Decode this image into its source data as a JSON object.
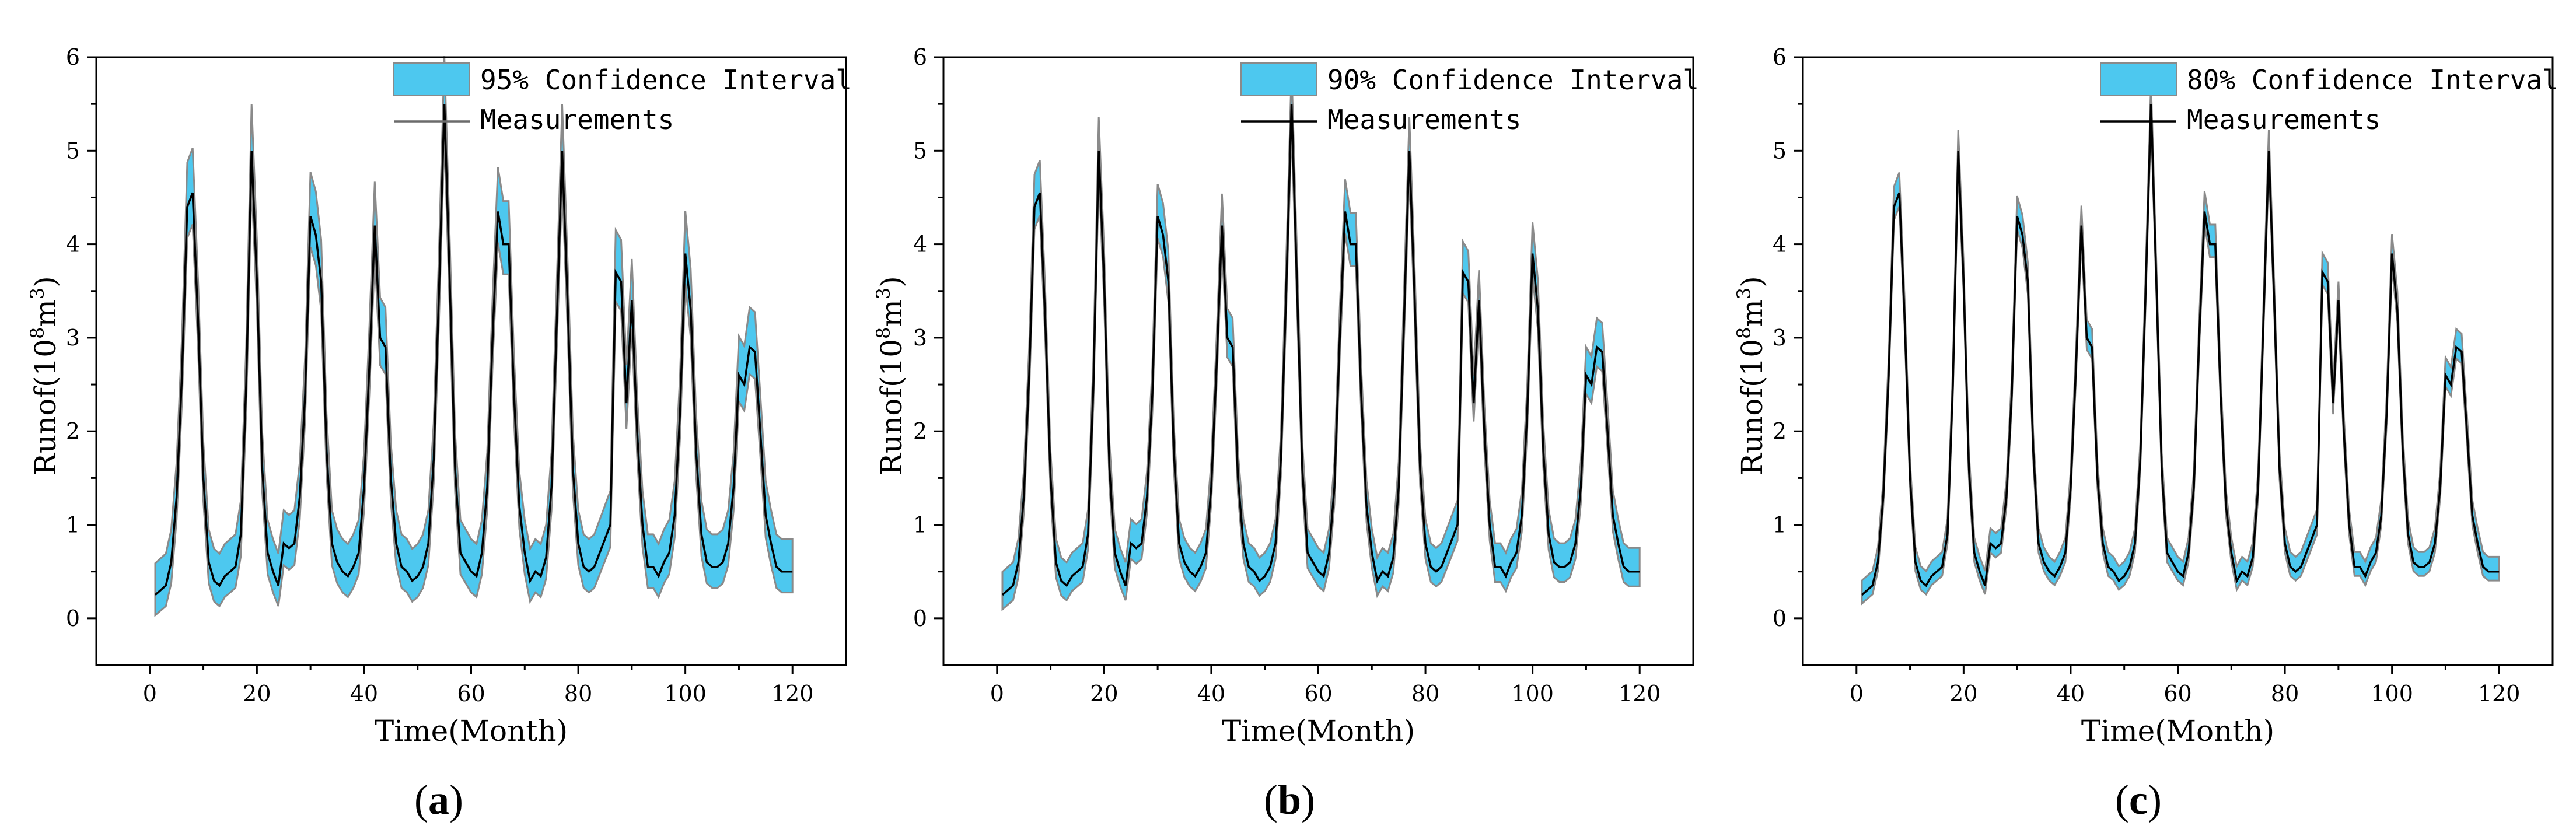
{
  "colors": {
    "band": "#4dc8ef",
    "band_edge": "#8a8a8a",
    "line": "#000000",
    "axis": "#000000"
  },
  "chart_data": [
    {
      "type": "area",
      "panel_label": "a",
      "xlabel": "Time(Month)",
      "ylabel_parts": {
        "main": "Runof(10",
        "sup1": "8",
        "mid": "m",
        "sup2": "3",
        "close": ")"
      },
      "xlim": [
        -10,
        130
      ],
      "ylim": [
        -0.5,
        6
      ],
      "xticks": [
        0,
        20,
        40,
        60,
        80,
        100,
        120
      ],
      "yticks": [
        0,
        1,
        2,
        3,
        4,
        5,
        6
      ],
      "legend": {
        "position": "top-right",
        "band_label": "95% Confidence Interval",
        "line_label": "Measurements"
      },
      "band_low_offset": 0.35,
      "band_high_offset": 0.55
    },
    {
      "type": "area",
      "panel_label": "b",
      "xlabel": "Time(Month)",
      "ylabel_parts": {
        "main": "Runof(10",
        "sup1": "8",
        "mid": "m",
        "sup2": "3",
        "close": ")"
      },
      "xlim": [
        -10,
        130
      ],
      "ylim": [
        -0.5,
        6
      ],
      "xticks": [
        0,
        20,
        40,
        60,
        80,
        100,
        120
      ],
      "yticks": [
        0,
        1,
        2,
        3,
        4,
        5,
        6
      ],
      "legend": {
        "position": "top-right",
        "band_label": "90% Confidence Interval",
        "line_label": "Measurements"
      },
      "band_low_offset": 0.25,
      "band_high_offset": 0.4
    },
    {
      "type": "area",
      "panel_label": "c",
      "xlabel": "Time(Month)",
      "ylabel_parts": {
        "main": "Runof(10",
        "sup1": "8",
        "mid": "m",
        "sup2": "3",
        "close": ")"
      },
      "xlim": [
        -10,
        130
      ],
      "ylim": [
        -0.5,
        6
      ],
      "xticks": [
        0,
        20,
        40,
        60,
        80,
        100,
        120
      ],
      "yticks": [
        0,
        1,
        2,
        3,
        4,
        5,
        6
      ],
      "legend": {
        "position": "top-right",
        "band_label": "80% Confidence Interval",
        "line_label": "Measurements"
      },
      "band_low_offset": 0.15,
      "band_high_offset": 0.25
    }
  ],
  "measurements": {
    "x": [
      1,
      2,
      3,
      4,
      5,
      6,
      7,
      8,
      9,
      10,
      11,
      12,
      13,
      14,
      15,
      16,
      17,
      18,
      19,
      20,
      21,
      22,
      23,
      24,
      25,
      26,
      27,
      28,
      29,
      30,
      31,
      32,
      33,
      34,
      35,
      36,
      37,
      38,
      39,
      40,
      41,
      42,
      43,
      44,
      45,
      46,
      47,
      48,
      49,
      50,
      51,
      52,
      53,
      54,
      55,
      56,
      57,
      58,
      59,
      60,
      61,
      62,
      63,
      64,
      65,
      66,
      67,
      68,
      69,
      70,
      71,
      72,
      73,
      74,
      75,
      76,
      77,
      78,
      79,
      80,
      81,
      82,
      83,
      84,
      85,
      86,
      87,
      88,
      89,
      90,
      91,
      92,
      93,
      94,
      95,
      96,
      97,
      98,
      99,
      100,
      101,
      102,
      103,
      104,
      105,
      106,
      107,
      108,
      109,
      110,
      111,
      112,
      113,
      114,
      115,
      116,
      117,
      118,
      119,
      120
    ],
    "y": [
      0.25,
      0.3,
      0.35,
      0.6,
      1.3,
      2.6,
      4.4,
      4.55,
      3.2,
      1.5,
      0.6,
      0.4,
      0.35,
      0.45,
      0.5,
      0.55,
      0.9,
      2.5,
      5.0,
      3.6,
      1.6,
      0.7,
      0.5,
      0.35,
      0.8,
      0.75,
      0.8,
      1.3,
      2.4,
      4.3,
      4.1,
      3.6,
      1.8,
      0.8,
      0.6,
      0.5,
      0.45,
      0.55,
      0.7,
      1.4,
      2.7,
      4.2,
      3.0,
      2.9,
      1.5,
      0.8,
      0.55,
      0.5,
      0.4,
      0.45,
      0.55,
      0.8,
      1.7,
      3.5,
      5.5,
      3.6,
      1.6,
      0.7,
      0.6,
      0.5,
      0.45,
      0.7,
      1.4,
      3.0,
      4.35,
      4.0,
      4.0,
      2.4,
      1.2,
      0.7,
      0.4,
      0.5,
      0.45,
      0.65,
      1.4,
      3.2,
      5.0,
      3.4,
      1.6,
      0.8,
      0.55,
      0.5,
      0.55,
      0.7,
      0.85,
      1.0,
      3.7,
      3.6,
      2.3,
      3.4,
      2.0,
      1.0,
      0.55,
      0.55,
      0.45,
      0.6,
      0.7,
      1.1,
      2.2,
      3.9,
      3.3,
      1.8,
      0.9,
      0.6,
      0.55,
      0.55,
      0.6,
      0.8,
      1.4,
      2.6,
      2.5,
      2.9,
      2.85,
      2.0,
      1.1,
      0.8,
      0.55,
      0.5,
      0.5,
      0.5
    ]
  }
}
